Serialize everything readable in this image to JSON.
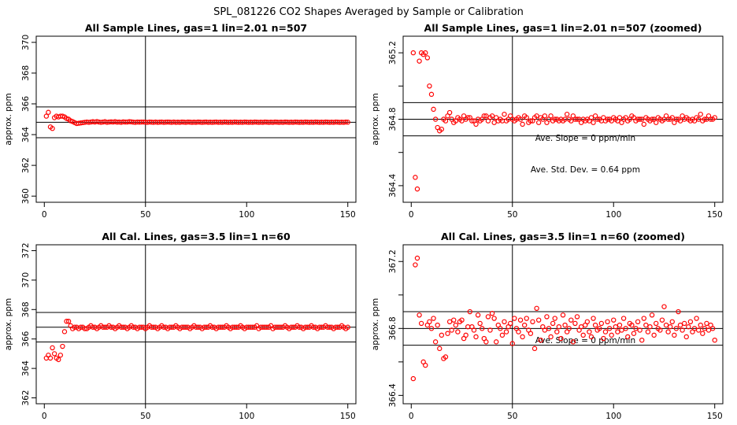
{
  "figure": {
    "title": "SPL_081226  CO2 Shapes Averaged by Sample or Calibration"
  },
  "chart_data": [
    {
      "type": "scatter",
      "title": "All Sample Lines, gas=1 lin=2.01 n=507",
      "xlabel": "",
      "ylabel": "approx. ppm",
      "xlim": [
        -4,
        154
      ],
      "ylim": [
        359.6,
        370.4
      ],
      "xticks": [
        0,
        50,
        100,
        150
      ],
      "yticks": [
        360,
        362,
        364,
        366,
        368,
        370
      ],
      "hlines": [
        364.8,
        365.8,
        363.8
      ],
      "vline": 50,
      "marker_color": "#ff0000",
      "annotations": [],
      "series": [
        {
          "y": [
            365.2,
            365.45,
            364.5,
            364.4,
            365.1,
            365.2,
            365.15,
            365.2,
            365.2,
            365.15,
            365.05,
            365.0,
            364.9,
            364.85,
            364.78,
            364.72,
            364.74,
            364.76,
            364.78,
            364.8,
            364.82,
            364.8,
            364.82,
            364.84,
            364.82,
            364.85,
            364.82,
            364.8,
            364.82,
            364.84,
            364.8,
            364.82,
            364.83,
            364.82,
            364.84,
            364.81,
            364.82,
            364.8,
            364.83,
            364.82,
            364.82,
            364.84,
            364.83,
            364.81,
            364.8,
            364.82,
            364.81,
            364.82,
            364.82,
            364.81,
            364.8,
            364.82,
            364.81,
            364.8,
            364.82,
            364.8,
            364.81,
            364.82,
            364.8,
            364.81,
            364.82,
            364.81,
            364.8,
            364.82,
            364.8,
            364.81,
            364.8,
            364.82,
            364.81,
            364.8,
            364.82,
            364.81,
            364.8,
            364.81,
            364.8,
            364.82,
            364.81,
            364.8,
            364.81,
            364.82,
            364.8,
            364.81,
            364.8,
            364.81,
            364.82,
            364.8,
            364.81,
            364.8,
            364.82,
            364.81,
            364.8,
            364.81,
            364.8,
            364.82,
            364.81,
            364.8,
            364.81,
            364.8,
            364.82,
            364.81,
            364.8,
            364.81,
            364.8,
            364.82,
            364.81,
            364.8,
            364.81,
            364.8,
            364.82,
            364.81,
            364.8,
            364.81,
            364.8,
            364.82,
            364.81,
            364.8,
            364.81,
            364.8,
            364.82,
            364.81,
            364.8,
            364.81,
            364.8,
            364.82,
            364.81,
            364.8,
            364.81,
            364.8,
            364.82,
            364.81,
            364.8,
            364.81,
            364.8,
            364.82,
            364.81,
            364.8,
            364.81,
            364.8,
            364.82,
            364.81,
            364.8,
            364.81,
            364.8,
            364.82,
            364.81,
            364.8,
            364.81,
            364.8,
            364.82,
            364.81
          ]
        }
      ]
    },
    {
      "type": "scatter",
      "title": "All Sample Lines, gas=1 lin=2.01 n=507 (zoomed)",
      "xlabel": "",
      "ylabel": "approx. ppm",
      "xlim": [
        -4,
        154
      ],
      "ylim": [
        364.3,
        365.3
      ],
      "xticks": [
        0,
        50,
        100,
        150
      ],
      "yticks": [
        364.4,
        364.6,
        364.8,
        365.0,
        365.2
      ],
      "ytick_labels": [
        "364.4",
        "",
        "364.8",
        "",
        "365.2"
      ],
      "hlines": [
        364.8,
        364.9,
        364.7
      ],
      "vline": 50,
      "marker_color": "#ff0000",
      "annotations": [
        "Ave. Slope =  0  ppm/min",
        "Ave. Std. Dev. =  0.64  ppm"
      ],
      "series": [
        {
          "y": [
            365.2,
            364.45,
            364.38,
            365.15,
            365.2,
            365.19,
            365.2,
            365.17,
            365.0,
            364.95,
            364.86,
            364.8,
            364.75,
            364.73,
            364.74,
            364.8,
            364.79,
            364.82,
            364.84,
            364.8,
            364.78,
            364.79,
            364.81,
            364.8,
            364.79,
            364.82,
            364.8,
            364.81,
            364.81,
            364.79,
            364.79,
            364.77,
            364.8,
            364.79,
            364.8,
            364.82,
            364.82,
            364.79,
            364.81,
            364.82,
            364.78,
            364.81,
            364.79,
            364.8,
            364.79,
            364.83,
            364.79,
            364.8,
            364.82,
            364.8,
            364.79,
            364.8,
            364.81,
            364.8,
            364.77,
            364.82,
            364.81,
            364.78,
            364.79,
            364.79,
            364.81,
            364.82,
            364.78,
            364.81,
            364.8,
            364.82,
            364.78,
            364.8,
            364.82,
            364.79,
            364.8,
            364.8,
            364.79,
            364.8,
            364.79,
            364.8,
            364.83,
            364.8,
            364.79,
            364.82,
            364.8,
            364.8,
            364.8,
            364.78,
            364.8,
            364.79,
            364.8,
            364.79,
            364.81,
            364.78,
            364.82,
            364.8,
            364.8,
            364.79,
            364.81,
            364.79,
            364.8,
            364.8,
            364.79,
            364.81,
            364.8,
            364.79,
            364.81,
            364.78,
            364.8,
            364.81,
            364.79,
            364.8,
            364.82,
            364.81,
            364.79,
            364.8,
            364.8,
            364.8,
            364.77,
            364.81,
            364.8,
            364.79,
            364.8,
            364.8,
            364.78,
            364.81,
            364.8,
            364.79,
            364.8,
            364.82,
            364.8,
            364.8,
            364.81,
            364.78,
            364.8,
            364.8,
            364.79,
            364.82,
            364.8,
            364.81,
            364.8,
            364.79,
            364.8,
            364.79,
            364.81,
            364.8,
            364.83,
            364.79,
            364.8,
            364.8,
            364.82,
            364.8,
            364.8,
            364.81
          ]
        }
      ]
    },
    {
      "type": "scatter",
      "title": "All Cal. Lines, gas=3.5 lin=1 n=60",
      "xlabel": "",
      "ylabel": "approx. ppm",
      "xlim": [
        -4,
        154
      ],
      "ylim": [
        361.6,
        372.4
      ],
      "xticks": [
        0,
        50,
        100,
        150
      ],
      "yticks": [
        362,
        364,
        366,
        368,
        370,
        372
      ],
      "hlines": [
        366.8,
        367.8,
        365.8
      ],
      "vline": 50,
      "marker_color": "#ff0000",
      "annotations": [],
      "series": [
        {
          "y": [
            364.7,
            364.9,
            364.7,
            365.4,
            365.0,
            364.7,
            364.6,
            364.9,
            365.5,
            366.5,
            367.2,
            367.2,
            366.9,
            366.7,
            366.8,
            366.8,
            366.7,
            366.8,
            366.8,
            366.7,
            366.7,
            366.8,
            366.9,
            366.8,
            366.8,
            366.7,
            366.8,
            366.9,
            366.8,
            366.8,
            366.8,
            366.9,
            366.8,
            366.8,
            366.7,
            366.8,
            366.9,
            366.8,
            366.8,
            366.8,
            366.7,
            366.8,
            366.9,
            366.8,
            366.8,
            366.7,
            366.8,
            366.8,
            366.8,
            366.7,
            366.8,
            366.9,
            366.8,
            366.8,
            366.8,
            366.7,
            366.8,
            366.9,
            366.8,
            366.8,
            366.7,
            366.8,
            366.8,
            366.8,
            366.9,
            366.8,
            366.7,
            366.8,
            366.8,
            366.8,
            366.8,
            366.7,
            366.8,
            366.9,
            366.8,
            366.8,
            366.8,
            366.7,
            366.8,
            366.8,
            366.8,
            366.9,
            366.8,
            366.8,
            366.7,
            366.8,
            366.8,
            366.8,
            366.8,
            366.9,
            366.8,
            366.7,
            366.8,
            366.8,
            366.8,
            366.8,
            366.9,
            366.8,
            366.7,
            366.8,
            366.8,
            366.8,
            366.8,
            366.8,
            366.9,
            366.7,
            366.8,
            366.8,
            366.8,
            366.8,
            366.8,
            366.9,
            366.7,
            366.8,
            366.8,
            366.8,
            366.8,
            366.8,
            366.9,
            366.8,
            366.7,
            366.8,
            366.8,
            366.8,
            366.9,
            366.8,
            366.8,
            366.7,
            366.8,
            366.8,
            366.8,
            366.9,
            366.8,
            366.8,
            366.7,
            366.8,
            366.8,
            366.8,
            366.9,
            366.8,
            366.8,
            366.8,
            366.7,
            366.8,
            366.8,
            366.8,
            366.9,
            366.8,
            366.7,
            366.8
          ]
        }
      ]
    },
    {
      "type": "scatter",
      "title": "All Cal. Lines, gas=3.5 lin=1 n=60 (zoomed)",
      "xlabel": "",
      "ylabel": "approx. ppm",
      "xlim": [
        -4,
        154
      ],
      "ylim": [
        366.35,
        367.3
      ],
      "xticks": [
        0,
        50,
        100,
        150
      ],
      "yticks": [
        366.4,
        366.6,
        366.8,
        367.0,
        367.2
      ],
      "ytick_labels": [
        "366.4",
        "",
        "366.8",
        "",
        "367.2"
      ],
      "hlines": [
        366.8,
        366.9,
        366.7
      ],
      "vline": 50,
      "marker_color": "#ff0000",
      "annotations": [
        "Ave. Slope =  0  ppm/min"
      ],
      "series": [
        {
          "y": [
            366.5,
            367.18,
            367.22,
            366.88,
            366.83,
            366.6,
            366.58,
            366.82,
            366.84,
            366.8,
            366.86,
            366.72,
            366.82,
            366.68,
            366.76,
            366.62,
            366.63,
            366.77,
            366.84,
            366.79,
            366.85,
            366.82,
            366.78,
            366.84,
            366.85,
            366.74,
            366.76,
            366.81,
            366.9,
            366.81,
            366.79,
            366.75,
            366.88,
            366.83,
            366.8,
            366.74,
            366.72,
            366.87,
            366.79,
            366.89,
            366.86,
            366.72,
            366.82,
            366.8,
            366.76,
            366.84,
            366.78,
            366.81,
            366.83,
            366.71,
            366.86,
            366.8,
            366.78,
            366.85,
            366.75,
            366.82,
            366.86,
            366.79,
            366.77,
            366.84,
            366.68,
            366.92,
            366.85,
            366.73,
            366.81,
            366.79,
            366.87,
            366.8,
            366.75,
            366.83,
            366.86,
            366.78,
            366.81,
            366.74,
            366.88,
            366.82,
            366.78,
            366.8,
            366.85,
            366.72,
            366.83,
            366.87,
            366.79,
            366.81,
            366.76,
            366.82,
            366.84,
            366.78,
            366.75,
            366.86,
            366.82,
            366.79,
            366.8,
            366.83,
            366.74,
            366.78,
            366.84,
            366.8,
            366.76,
            366.85,
            366.81,
            366.78,
            366.82,
            366.79,
            366.86,
            366.8,
            366.75,
            366.83,
            366.82,
            366.77,
            366.8,
            366.84,
            366.79,
            366.73,
            366.86,
            366.82,
            366.78,
            366.81,
            366.88,
            366.76,
            366.83,
            366.8,
            366.79,
            366.85,
            366.93,
            366.82,
            366.78,
            366.81,
            366.84,
            366.76,
            366.8,
            366.9,
            366.82,
            366.79,
            366.83,
            366.75,
            366.81,
            366.84,
            366.78,
            366.8,
            366.86,
            366.79,
            366.82,
            366.77,
            366.8,
            366.83,
            366.79,
            366.82,
            366.8,
            366.73
          ]
        }
      ]
    }
  ]
}
